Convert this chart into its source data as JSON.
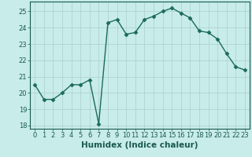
{
  "x": [
    0,
    1,
    2,
    3,
    4,
    5,
    6,
    7,
    8,
    9,
    10,
    11,
    12,
    13,
    14,
    15,
    16,
    17,
    18,
    19,
    20,
    21,
    22,
    23
  ],
  "y": [
    20.5,
    19.6,
    19.6,
    20.0,
    20.5,
    20.5,
    20.8,
    18.1,
    24.3,
    24.5,
    23.6,
    23.7,
    24.5,
    24.7,
    25.0,
    25.2,
    24.9,
    24.6,
    23.8,
    23.7,
    23.3,
    22.4,
    21.6,
    21.4
  ],
  "xlabel": "Humidex (Indice chaleur)",
  "xlim": [
    -0.5,
    23.5
  ],
  "ylim": [
    17.8,
    25.6
  ],
  "yticks": [
    18,
    19,
    20,
    21,
    22,
    23,
    24,
    25
  ],
  "xticks": [
    0,
    1,
    2,
    3,
    4,
    5,
    6,
    7,
    8,
    9,
    10,
    11,
    12,
    13,
    14,
    15,
    16,
    17,
    18,
    19,
    20,
    21,
    22,
    23
  ],
  "line_color": "#1a6b5a",
  "marker_size": 2.5,
  "line_width": 1.0,
  "bg_color": "#c8ecea",
  "grid_color": "#aed4d1",
  "tick_label_fontsize": 6.0,
  "xlabel_fontsize": 7.5
}
